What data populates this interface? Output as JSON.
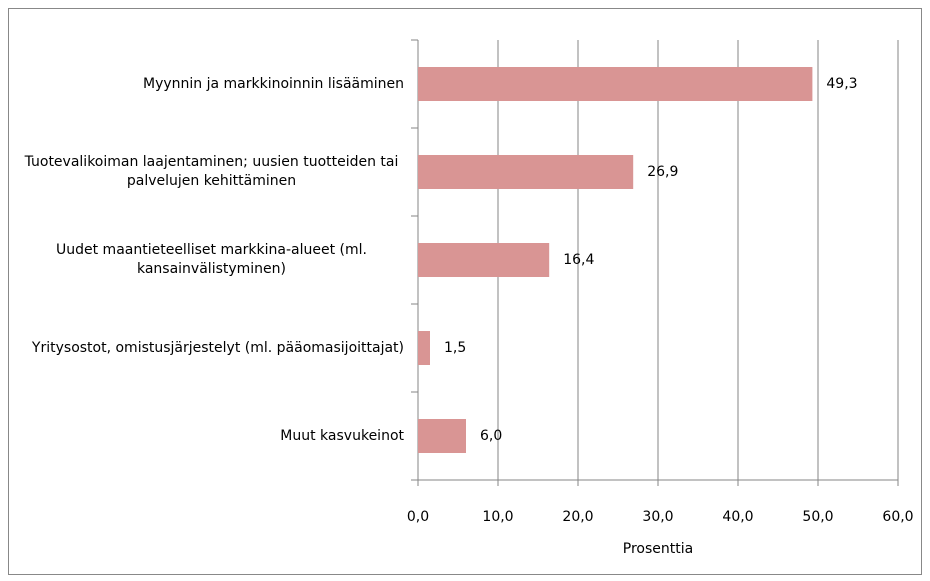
{
  "chart_data": {
    "type": "bar",
    "orientation": "horizontal",
    "categories": [
      "Myynnin ja markkinoinnin lisääminen",
      "Tuotevalikoiman laajentaminen; uusien tuotteiden tai palvelujen kehittäminen",
      "Uudet maantieteelliset markkina-alueet (ml. kansainvälistyminen)",
      "Yritysostot, omistusjärjestelyt (ml. pääomasijoittajat)",
      "Muut kasvukeinot"
    ],
    "values": [
      49.3,
      26.9,
      16.4,
      1.5,
      6.0
    ],
    "value_labels": [
      "49,3",
      "26,9",
      "16,4",
      "1,5",
      "6,0"
    ],
    "color": "#d99594",
    "xlim": [
      0,
      60
    ],
    "xticks": [
      {
        "value": 0,
        "label": "0,0"
      },
      {
        "value": 10,
        "label": "10,0"
      },
      {
        "value": 20,
        "label": "20,0"
      },
      {
        "value": 30,
        "label": "30,0"
      },
      {
        "value": 40,
        "label": "40,0"
      },
      {
        "value": 50,
        "label": "50,0"
      },
      {
        "value": 60,
        "label": "60,0"
      }
    ],
    "xlabel": "Prosenttia",
    "grid": true
  }
}
